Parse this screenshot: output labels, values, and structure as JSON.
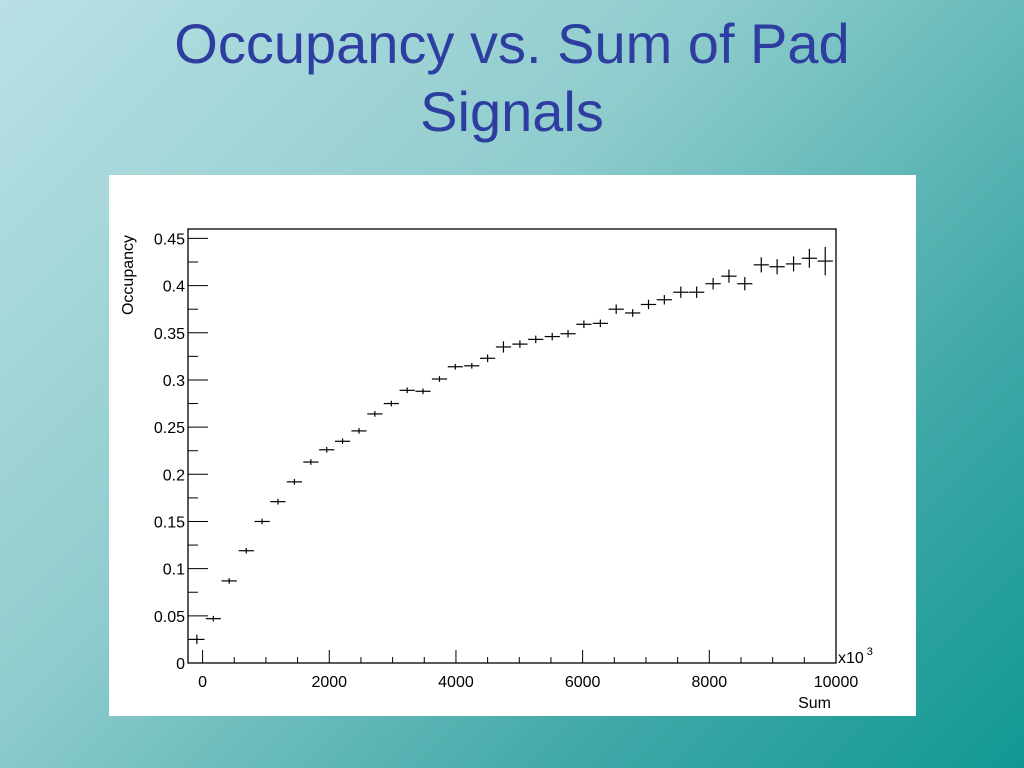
{
  "slide": {
    "title_line1": "Occupancy vs. Sum of Pad",
    "title_line2": "Signals"
  },
  "chart_data": {
    "type": "scatter",
    "title": "Occupancy vs. Sum of Pad Signals",
    "xlabel": "Sum",
    "ylabel": "Occupancy",
    "x_multiplier_label": "x10",
    "x_multiplier_exponent": "3",
    "xlim": [
      -230,
      10000
    ],
    "ylim": [
      0,
      0.46
    ],
    "x_ticks": [
      0,
      2000,
      4000,
      6000,
      8000,
      10000
    ],
    "x_tick_labels": [
      "0",
      "2000",
      "4000",
      "6000",
      "8000",
      "10000"
    ],
    "y_ticks": [
      0,
      0.05,
      0.1,
      0.15,
      0.2,
      0.25,
      0.3,
      0.35,
      0.4,
      0.45
    ],
    "y_tick_labels": [
      "0",
      "0.05",
      "0.1",
      "0.15",
      "0.2",
      "0.25",
      "0.3",
      "0.35",
      "0.4",
      "0.45"
    ],
    "grid": false,
    "marker_color": "#000000",
    "x_bin_half_width": 120,
    "series": [
      {
        "points": [
          {
            "x": -90,
            "y": 0.025,
            "ey": 0.005
          },
          {
            "x": 170,
            "y": 0.047,
            "ey": 0.003
          },
          {
            "x": 420,
            "y": 0.087,
            "ey": 0.003
          },
          {
            "x": 690,
            "y": 0.119,
            "ey": 0.003
          },
          {
            "x": 940,
            "y": 0.15,
            "ey": 0.003
          },
          {
            "x": 1190,
            "y": 0.171,
            "ey": 0.003
          },
          {
            "x": 1450,
            "y": 0.192,
            "ey": 0.003
          },
          {
            "x": 1710,
            "y": 0.213,
            "ey": 0.003
          },
          {
            "x": 1960,
            "y": 0.226,
            "ey": 0.003
          },
          {
            "x": 2210,
            "y": 0.235,
            "ey": 0.003
          },
          {
            "x": 2470,
            "y": 0.246,
            "ey": 0.003
          },
          {
            "x": 2720,
            "y": 0.264,
            "ey": 0.003
          },
          {
            "x": 2980,
            "y": 0.275,
            "ey": 0.003
          },
          {
            "x": 3230,
            "y": 0.289,
            "ey": 0.003
          },
          {
            "x": 3480,
            "y": 0.288,
            "ey": 0.003
          },
          {
            "x": 3740,
            "y": 0.301,
            "ey": 0.003
          },
          {
            "x": 3990,
            "y": 0.314,
            "ey": 0.003
          },
          {
            "x": 4250,
            "y": 0.315,
            "ey": 0.003
          },
          {
            "x": 4500,
            "y": 0.323,
            "ey": 0.004
          },
          {
            "x": 4750,
            "y": 0.335,
            "ey": 0.006
          },
          {
            "x": 5010,
            "y": 0.338,
            "ey": 0.004
          },
          {
            "x": 5260,
            "y": 0.343,
            "ey": 0.004
          },
          {
            "x": 5520,
            "y": 0.346,
            "ey": 0.004
          },
          {
            "x": 5770,
            "y": 0.349,
            "ey": 0.004
          },
          {
            "x": 6020,
            "y": 0.359,
            "ey": 0.004
          },
          {
            "x": 6280,
            "y": 0.36,
            "ey": 0.004
          },
          {
            "x": 6530,
            "y": 0.375,
            "ey": 0.005
          },
          {
            "x": 6790,
            "y": 0.371,
            "ey": 0.004
          },
          {
            "x": 7040,
            "y": 0.38,
            "ey": 0.005
          },
          {
            "x": 7290,
            "y": 0.385,
            "ey": 0.005
          },
          {
            "x": 7550,
            "y": 0.393,
            "ey": 0.006
          },
          {
            "x": 7800,
            "y": 0.393,
            "ey": 0.006
          },
          {
            "x": 8060,
            "y": 0.402,
            "ey": 0.006
          },
          {
            "x": 8310,
            "y": 0.41,
            "ey": 0.007
          },
          {
            "x": 8560,
            "y": 0.402,
            "ey": 0.007
          },
          {
            "x": 8820,
            "y": 0.422,
            "ey": 0.008
          },
          {
            "x": 9070,
            "y": 0.42,
            "ey": 0.008
          },
          {
            "x": 9330,
            "y": 0.423,
            "ey": 0.008
          },
          {
            "x": 9580,
            "y": 0.429,
            "ey": 0.01
          },
          {
            "x": 9830,
            "y": 0.426,
            "ey": 0.015
          }
        ]
      }
    ]
  }
}
